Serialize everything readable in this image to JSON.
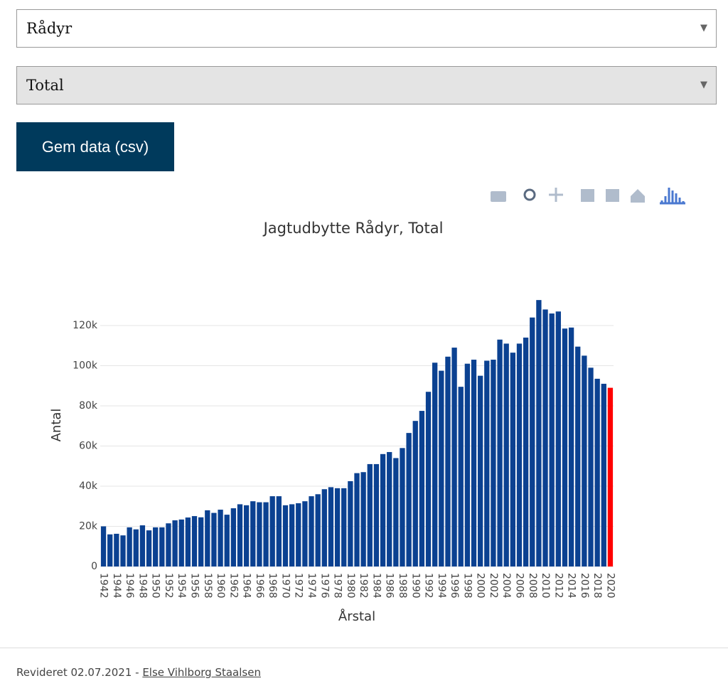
{
  "form": {
    "species_select": "Rådyr",
    "region_select": "Total",
    "download_button": "Gem data (csv)"
  },
  "chart_data": {
    "type": "bar",
    "title": "Jagtudbytte Rådyr, Total",
    "xlabel": "Årstal",
    "ylabel": "Antal",
    "x": [
      1942,
      1943,
      1944,
      1945,
      1946,
      1947,
      1948,
      1949,
      1950,
      1951,
      1952,
      1953,
      1954,
      1955,
      1956,
      1957,
      1958,
      1959,
      1960,
      1961,
      1962,
      1963,
      1964,
      1965,
      1966,
      1967,
      1968,
      1969,
      1970,
      1971,
      1972,
      1973,
      1974,
      1975,
      1976,
      1977,
      1978,
      1979,
      1980,
      1981,
      1982,
      1983,
      1984,
      1985,
      1986,
      1987,
      1988,
      1989,
      1990,
      1991,
      1992,
      1993,
      1994,
      1995,
      1996,
      1997,
      1998,
      1999,
      2000,
      2001,
      2002,
      2003,
      2004,
      2005,
      2006,
      2007,
      2008,
      2009,
      2010,
      2011,
      2012,
      2013,
      2014,
      2015,
      2016,
      2017,
      2018,
      2019,
      2020
    ],
    "values": [
      20000,
      16000,
      16300,
      15500,
      19500,
      18500,
      20500,
      18000,
      19500,
      19500,
      21500,
      23000,
      23400,
      24400,
      25100,
      24500,
      28000,
      26700,
      28300,
      25800,
      29000,
      31000,
      30500,
      32500,
      32000,
      32000,
      35000,
      35000,
      30500,
      31000,
      31500,
      32500,
      35000,
      36000,
      38500,
      39500,
      39000,
      39000,
      42500,
      46500,
      47000,
      51000,
      51000,
      56000,
      57000,
      54000,
      59000,
      66500,
      72500,
      77500,
      87000,
      101500,
      97500,
      104500,
      109000,
      89500,
      101000,
      103000,
      95000,
      102500,
      103000,
      113000,
      111000,
      106500,
      111000,
      114000,
      124000,
      132700,
      128000,
      126000,
      127000,
      118500,
      119000,
      109500,
      105000,
      99000,
      93500,
      91000,
      89000
    ],
    "colors": [
      "#0b4191",
      "#0b4191",
      "#0b4191",
      "#0b4191",
      "#0b4191",
      "#0b4191",
      "#0b4191",
      "#0b4191",
      "#0b4191",
      "#0b4191",
      "#0b4191",
      "#0b4191",
      "#0b4191",
      "#0b4191",
      "#0b4191",
      "#0b4191",
      "#0b4191",
      "#0b4191",
      "#0b4191",
      "#0b4191",
      "#0b4191",
      "#0b4191",
      "#0b4191",
      "#0b4191",
      "#0b4191",
      "#0b4191",
      "#0b4191",
      "#0b4191",
      "#0b4191",
      "#0b4191",
      "#0b4191",
      "#0b4191",
      "#0b4191",
      "#0b4191",
      "#0b4191",
      "#0b4191",
      "#0b4191",
      "#0b4191",
      "#0b4191",
      "#0b4191",
      "#0b4191",
      "#0b4191",
      "#0b4191",
      "#0b4191",
      "#0b4191",
      "#0b4191",
      "#0b4191",
      "#0b4191",
      "#0b4191",
      "#0b4191",
      "#0b4191",
      "#0b4191",
      "#0b4191",
      "#0b4191",
      "#0b4191",
      "#0b4191",
      "#0b4191",
      "#0b4191",
      "#0b4191",
      "#0b4191",
      "#0b4191",
      "#0b4191",
      "#0b4191",
      "#0b4191",
      "#0b4191",
      "#0b4191",
      "#0b4191",
      "#0b4191",
      "#0b4191",
      "#0b4191",
      "#0b4191",
      "#0b4191",
      "#0b4191",
      "#0b4191",
      "#0b4191",
      "#0b4191",
      "#0b4191",
      "#0b4191",
      "#ff0000"
    ],
    "xlim": [
      1941.5,
      2020.5
    ],
    "xticks": [
      1942,
      1944,
      1946,
      1948,
      1950,
      1952,
      1954,
      1956,
      1958,
      1960,
      1962,
      1964,
      1966,
      1968,
      1970,
      1972,
      1974,
      1976,
      1978,
      1980,
      1982,
      1984,
      1986,
      1988,
      1990,
      1992,
      1994,
      1996,
      1998,
      2000,
      2002,
      2004,
      2006,
      2008,
      2010,
      2012,
      2014,
      2016,
      2018,
      2020
    ],
    "ylim": [
      0,
      140000
    ],
    "yticks": [
      0,
      {
        "value": 20000,
        "label": "20k"
      },
      {
        "value": 40000,
        "label": "40k"
      },
      {
        "value": 60000,
        "label": "60k"
      },
      {
        "value": 80000,
        "label": "80k"
      },
      {
        "value": 100000,
        "label": "100k"
      },
      {
        "value": 120000,
        "label": "120k"
      }
    ],
    "grid": true
  },
  "footer": {
    "revised": "Revideret 02.07.2021 - ",
    "author": "Else Vihlborg Staalsen"
  }
}
